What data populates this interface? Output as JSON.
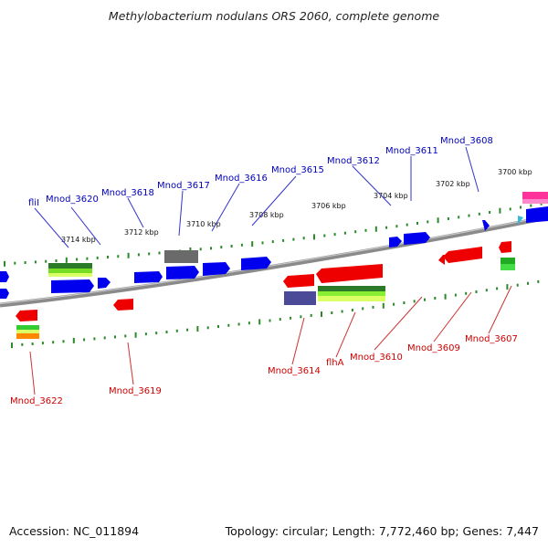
{
  "title": "Methylobacterium nodulans ORS 2060, complete genome",
  "footer": {
    "accession": "Accession: NC_011894",
    "topology": "Topology: circular; Length: 7,772,460 bp; Genes: 7,447"
  },
  "colors": {
    "forward_label": "#0000bb",
    "reverse_label": "#cc0000",
    "backbone": "#888888",
    "tick": "#2a8a2a"
  },
  "scale_labels": [
    "3714 kbp",
    "3712 kbp",
    "3710 kbp",
    "3708 kbp",
    "3706 kbp",
    "3704 kbp",
    "3702 kbp",
    "3700 kbp"
  ],
  "forward_labels": [
    "fliI",
    "Mnod_3620",
    "Mnod_3618",
    "Mnod_3617",
    "Mnod_3616",
    "Mnod_3615",
    "Mnod_3612",
    "Mnod_3611",
    "Mnod_3608"
  ],
  "reverse_labels": [
    "Mnod_3622",
    "Mnod_3619",
    "Mnod_3614",
    "flhA",
    "Mnod_3610",
    "Mnod_3609",
    "Mnod_3607"
  ]
}
